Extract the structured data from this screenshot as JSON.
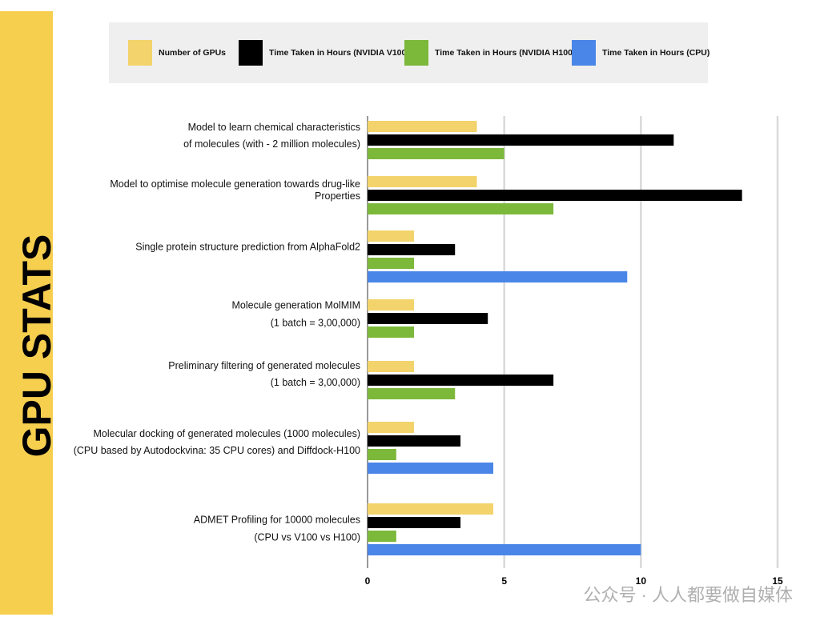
{
  "chart_data": {
    "type": "hbar",
    "title": "GPU STATS",
    "categories": [
      [
        "Model to learn chemical characteristics",
        "of molecules (with - 2 million molecules)"
      ],
      [
        "Model to optimise molecule generation towards drug-like",
        "Properties"
      ],
      [
        "Single protein structure prediction from AlphaFold2"
      ],
      [
        "Molecule generation MolMIM",
        "(1 batch = 3,00,000)"
      ],
      [
        "Preliminary filtering of generated molecules",
        "(1 batch = 3,00,000)"
      ],
      [
        "Molecular docking of generated molecules (1000 molecules)",
        "(CPU based by Autodockvina: 35 CPU cores) and Diffdock-H100"
      ],
      [
        "ADMET Profiling for 10000 molecules",
        "(CPU vs V100 vs H100)"
      ]
    ],
    "series": [
      {
        "name": "Number of GPUs",
        "color": "#f3d36b",
        "values": [
          4,
          4,
          1.7,
          1.7,
          1.7,
          1.7,
          4.6
        ]
      },
      {
        "name": "Time Taken in Hours (NVIDIA V100)",
        "color": "#000000",
        "values": [
          11.2,
          13.7,
          3.2,
          4.4,
          6.8,
          3.4,
          3.4
        ]
      },
      {
        "name": "Time Taken in Hours (NVIDIA H100)",
        "color": "#7cb83a",
        "values": [
          5,
          6.8,
          1.7,
          1.7,
          3.2,
          1.05,
          1.05
        ]
      },
      {
        "name": "Time Taken in Hours (CPU)",
        "color": "#4a86e8",
        "values": [
          null,
          null,
          9.5,
          null,
          null,
          4.6,
          10
        ]
      }
    ],
    "xlim": [
      0,
      15
    ],
    "xticks": [
      0,
      5,
      10,
      15
    ],
    "grid": true
  },
  "watermark": "公众号 · 人人都要做自媒体"
}
